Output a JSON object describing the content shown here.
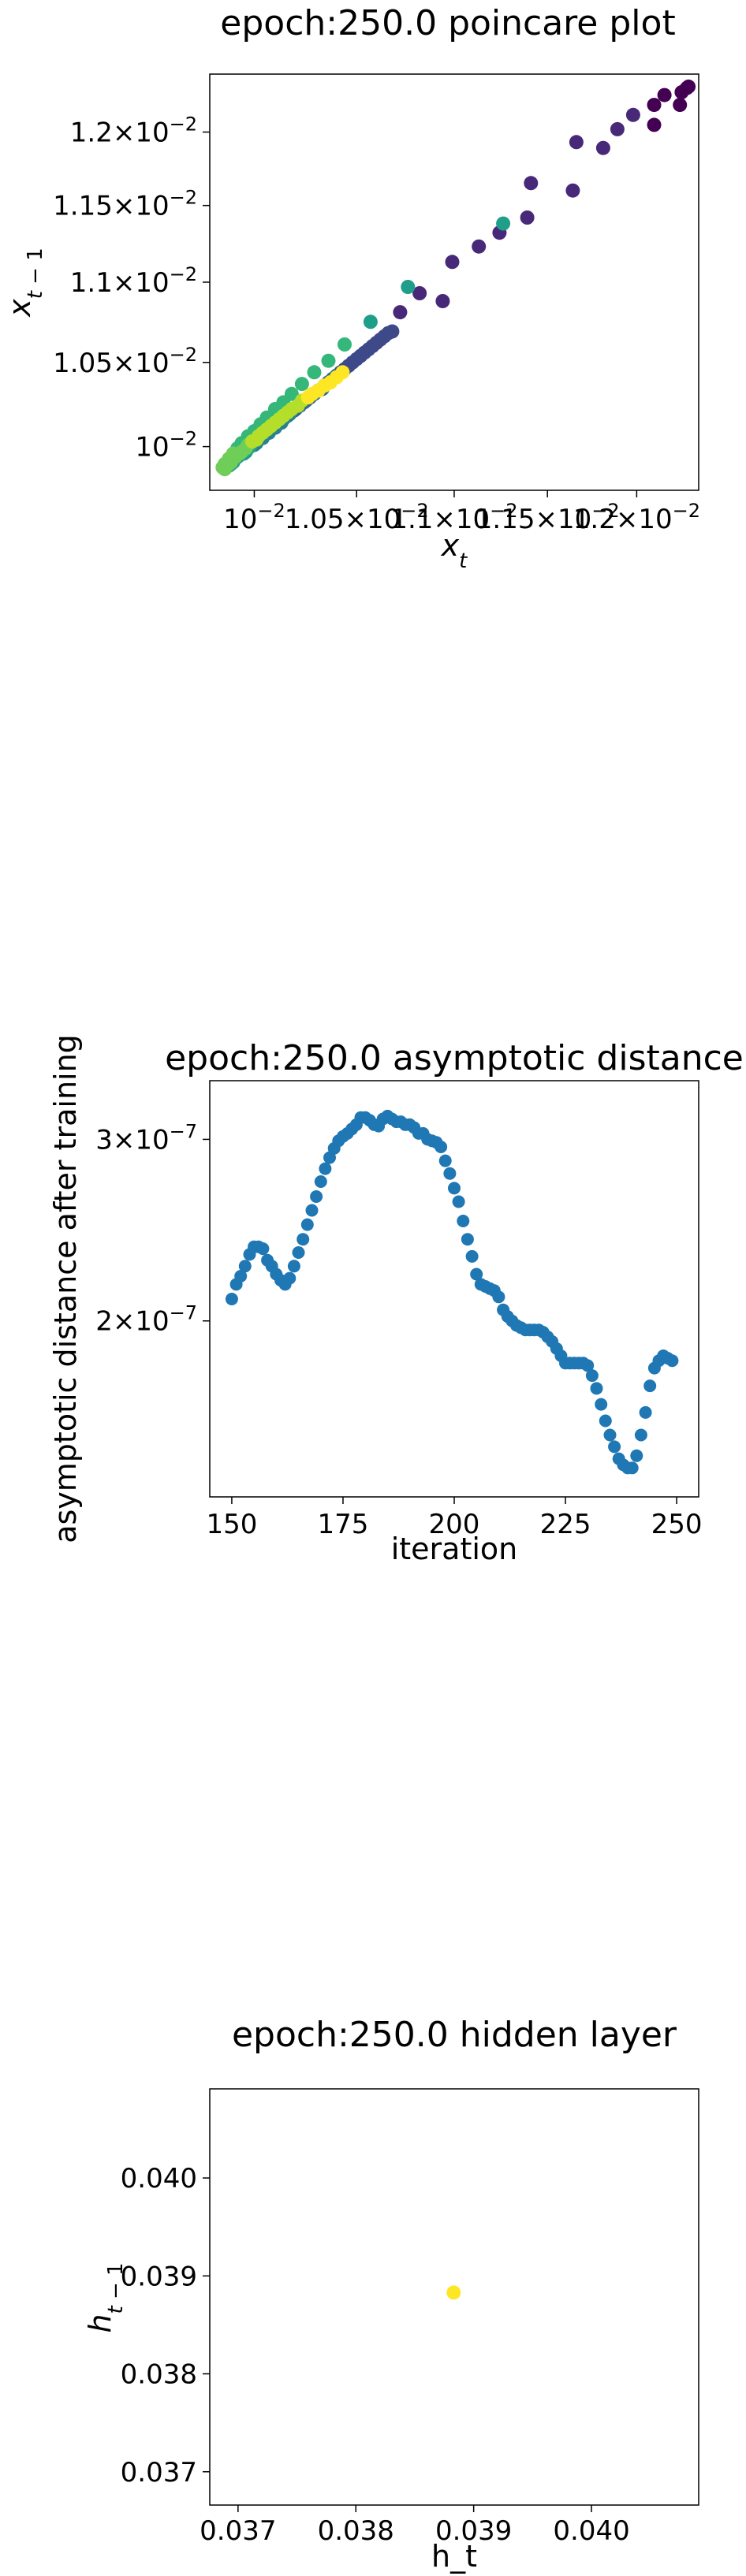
{
  "chart_data": [
    {
      "type": "scatter",
      "title": "epoch:250.0 poincare plot",
      "xlabel": "x_t",
      "ylabel": "x_{t-1}",
      "scale": "log",
      "xlim": [
        0.00979,
        0.01236
      ],
      "ylim": [
        0.00975,
        0.01241
      ],
      "x_ticks": [
        0.01,
        0.0105,
        0.011,
        0.0115,
        0.012
      ],
      "x_tick_labels": [
        "10^{-2}",
        "1.05×10^{-2}",
        "1.1×10^{-2}",
        "1.15×10^{-2}",
        "1.2×10^{-2}"
      ],
      "y_ticks": [
        0.01,
        0.0105,
        0.011,
        0.0115,
        0.012
      ],
      "y_tick_labels": [
        "10^{-2}",
        "1.05×10^{-2}",
        "1.1×10^{-2}",
        "1.15×10^{-2}",
        "1.2×10^{-2}"
      ],
      "colormap": "viridis",
      "color_note": "points colored by iteration order, dark purple (earliest) to yellow (latest)",
      "points": [
        [
          0.0123,
          0.01232
        ],
        [
          0.01229,
          0.01231
        ],
        [
          0.01226,
          0.01228
        ],
        [
          0.01225,
          0.01219
        ],
        [
          0.01216,
          0.01226
        ],
        [
          0.0121,
          0.01219
        ],
        [
          0.0121,
          0.01205
        ],
        [
          0.01198,
          0.01212
        ],
        [
          0.01189,
          0.01202
        ],
        [
          0.01181,
          0.01189
        ],
        [
          0.01166,
          0.01193
        ],
        [
          0.01164,
          0.0116
        ],
        [
          0.01141,
          0.01165
        ],
        [
          0.01139,
          0.01142
        ],
        [
          0.01124,
          0.01132
        ],
        [
          0.01113,
          0.01123
        ],
        [
          0.01099,
          0.01113
        ],
        [
          0.01094,
          0.01088
        ],
        [
          0.01082,
          0.01093
        ],
        [
          0.01072,
          0.01081
        ],
        [
          0.01068,
          0.01069
        ],
        [
          0.01066,
          0.01068
        ],
        [
          0.01064,
          0.01066
        ],
        [
          0.01062,
          0.01064
        ],
        [
          0.0106,
          0.01062
        ],
        [
          0.01058,
          0.0106
        ],
        [
          0.01056,
          0.01058
        ],
        [
          0.01054,
          0.01056
        ],
        [
          0.01052,
          0.01054
        ],
        [
          0.0105,
          0.01052
        ],
        [
          0.01048,
          0.0105
        ],
        [
          0.01046,
          0.01048
        ],
        [
          0.01044,
          0.01046
        ],
        [
          0.01042,
          0.01044
        ],
        [
          0.0104,
          0.01042
        ],
        [
          0.01038,
          0.0104
        ],
        [
          0.01036,
          0.01038
        ],
        [
          0.01034,
          0.01036
        ],
        [
          0.01033,
          0.01034
        ],
        [
          0.01031,
          0.01033
        ],
        [
          0.01029,
          0.01031
        ],
        [
          0.01027,
          0.01029
        ],
        [
          0.01025,
          0.01027
        ],
        [
          0.01024,
          0.01026
        ],
        [
          0.01022,
          0.01024
        ],
        [
          0.0102,
          0.01022
        ],
        [
          0.01019,
          0.01021
        ],
        [
          0.01017,
          0.01019
        ],
        [
          0.01016,
          0.01018
        ],
        [
          0.01014,
          0.01016
        ],
        [
          0.01013,
          0.01014
        ],
        [
          0.01011,
          0.01013
        ],
        [
          0.0101,
          0.01011
        ],
        [
          0.01008,
          0.0101
        ],
        [
          0.01007,
          0.01008
        ],
        [
          0.01005,
          0.01007
        ],
        [
          0.01004,
          0.01005
        ],
        [
          0.01002,
          0.01004
        ],
        [
          0.01001,
          0.01002
        ],
        [
          0.01,
          0.01001
        ],
        [
          0.00998,
          0.01
        ],
        [
          0.00997,
          0.00999
        ],
        [
          0.00996,
          0.00997
        ],
        [
          0.00995,
          0.00996
        ],
        [
          0.00993,
          0.00995
        ],
        [
          0.00992,
          0.00994
        ],
        [
          0.00991,
          0.00993
        ],
        [
          0.0099,
          0.00991
        ],
        [
          0.00989,
          0.0099
        ],
        [
          0.00988,
          0.00989
        ],
        [
          0.01126,
          0.01138
        ],
        [
          0.01076,
          0.01097
        ],
        [
          0.01057,
          0.01075
        ],
        [
          0.01044,
          0.01061
        ],
        [
          0.01036,
          0.01051
        ],
        [
          0.01029,
          0.01044
        ],
        [
          0.01023,
          0.01037
        ],
        [
          0.01018,
          0.01031
        ],
        [
          0.01014,
          0.01026
        ],
        [
          0.0101,
          0.01022
        ],
        [
          0.01006,
          0.01017
        ],
        [
          0.01003,
          0.01013
        ],
        [
          0.01,
          0.01009
        ],
        [
          0.00997,
          0.01006
        ],
        [
          0.00994,
          0.01002
        ],
        [
          0.00992,
          0.00999
        ],
        [
          0.0099,
          0.00996
        ],
        [
          0.00988,
          0.00993
        ],
        [
          0.00986,
          0.0099
        ],
        [
          0.00985,
          0.00988
        ],
        [
          0.00986,
          0.00987
        ],
        [
          0.00987,
          0.00989
        ],
        [
          0.00988,
          0.0099
        ],
        [
          0.00989,
          0.00991
        ],
        [
          0.0099,
          0.00993
        ],
        [
          0.00991,
          0.00994
        ],
        [
          0.00993,
          0.00996
        ],
        [
          0.00994,
          0.00997
        ],
        [
          0.00996,
          0.00999
        ],
        [
          0.00997,
          0.01001
        ],
        [
          0.00999,
          0.01003
        ],
        [
          0.01001,
          0.01004
        ],
        [
          0.01002,
          0.01006
        ],
        [
          0.01004,
          0.01008
        ],
        [
          0.01006,
          0.0101
        ],
        [
          0.01008,
          0.01012
        ],
        [
          0.0101,
          0.01014
        ],
        [
          0.01012,
          0.01016
        ],
        [
          0.01014,
          0.01018
        ],
        [
          0.01016,
          0.0102
        ],
        [
          0.01018,
          0.01022
        ],
        [
          0.01021,
          0.01024
        ],
        [
          0.01023,
          0.01027
        ],
        [
          0.01026,
          0.01029
        ],
        [
          0.01028,
          0.01031
        ],
        [
          0.01031,
          0.01033
        ],
        [
          0.01034,
          0.01036
        ],
        [
          0.01037,
          0.01038
        ],
        [
          0.0104,
          0.01041
        ],
        [
          0.01043,
          0.01044
        ]
      ]
    },
    {
      "type": "scatter",
      "title": "epoch:250.0 asymptotic distance",
      "xlabel": "iteration",
      "ylabel": "asymptotic distance after training",
      "yscale": "log",
      "xlim": [
        145.05,
        254.95
      ],
      "ylim": [
        1.35e-07,
        3.42e-07
      ],
      "x_ticks": [
        150,
        175,
        200,
        225,
        250
      ],
      "x_tick_labels": [
        "150",
        "175",
        "200",
        "225",
        "250"
      ],
      "y_ticks": [
        2e-07,
        3e-07
      ],
      "y_tick_labels": [
        "2×10^{-7}",
        "3×10^{-7}"
      ],
      "color": "#1f77b4",
      "x": [
        150,
        151,
        152,
        153,
        154,
        155,
        156,
        157,
        158,
        159,
        160,
        161,
        162,
        163,
        164,
        165,
        166,
        167,
        168,
        169,
        170,
        171,
        172,
        173,
        174,
        175,
        176,
        177,
        178,
        179,
        180,
        181,
        182,
        183,
        184,
        185,
        186,
        187,
        188,
        189,
        190,
        191,
        192,
        193,
        194,
        195,
        196,
        197,
        198,
        199,
        200,
        201,
        202,
        203,
        204,
        205,
        206,
        207,
        208,
        209,
        210,
        211,
        212,
        213,
        214,
        215,
        216,
        217,
        218,
        219,
        220,
        221,
        222,
        223,
        224,
        225,
        226,
        227,
        228,
        229,
        230,
        231,
        232,
        233,
        234,
        235,
        236,
        237,
        238,
        239,
        240,
        241,
        242,
        243,
        244,
        245,
        246,
        247,
        248,
        249
      ],
      "y": [
        2.1e-07,
        2.17e-07,
        2.21e-07,
        2.26e-07,
        2.32e-07,
        2.36e-07,
        2.36e-07,
        2.35e-07,
        2.29e-07,
        2.26e-07,
        2.22e-07,
        2.19e-07,
        2.17e-07,
        2.2e-07,
        2.26e-07,
        2.33e-07,
        2.4e-07,
        2.48e-07,
        2.56e-07,
        2.64e-07,
        2.73e-07,
        2.81e-07,
        2.88e-07,
        2.94e-07,
        2.99e-07,
        3.02e-07,
        3.04e-07,
        3.07e-07,
        3.1e-07,
        3.15e-07,
        3.15e-07,
        3.13e-07,
        3.1e-07,
        3.09e-07,
        3.14e-07,
        3.16e-07,
        3.14e-07,
        3.12e-07,
        3.12e-07,
        3.1e-07,
        3.1e-07,
        3.08e-07,
        3.04e-07,
        3.04e-07,
        3e-07,
        2.99e-07,
        2.98e-07,
        2.95e-07,
        2.86e-07,
        2.78e-07,
        2.69e-07,
        2.61e-07,
        2.5e-07,
        2.4e-07,
        2.31e-07,
        2.22e-07,
        2.17e-07,
        2.16e-07,
        2.15e-07,
        2.14e-07,
        2.11e-07,
        2.05e-07,
        2.02e-07,
        2e-07,
        1.98e-07,
        1.97e-07,
        1.96e-07,
        1.96e-07,
        1.96e-07,
        1.96e-07,
        1.95e-07,
        1.93e-07,
        1.91e-07,
        1.88e-07,
        1.85e-07,
        1.82e-07,
        1.82e-07,
        1.82e-07,
        1.82e-07,
        1.82e-07,
        1.81e-07,
        1.77e-07,
        1.72e-07,
        1.66e-07,
        1.6e-07,
        1.55e-07,
        1.51e-07,
        1.47e-07,
        1.45e-07,
        1.44e-07,
        1.44e-07,
        1.48e-07,
        1.55e-07,
        1.63e-07,
        1.73e-07,
        1.8e-07,
        1.83e-07,
        1.85e-07,
        1.84e-07,
        1.83e-07
      ]
    },
    {
      "type": "scatter",
      "title": "epoch:250.0 hidden layer",
      "xlabel": "h_t",
      "ylabel": "h_{t-1}",
      "xlim": [
        0.03676,
        0.04091
      ],
      "ylim": [
        0.03666,
        0.04091
      ],
      "x_ticks": [
        0.037,
        0.038,
        0.039,
        0.04
      ],
      "x_tick_labels": [
        "0.037",
        "0.038",
        "0.039",
        "0.040"
      ],
      "y_ticks": [
        0.037,
        0.038,
        0.039,
        0.04
      ],
      "y_tick_labels": [
        "0.037",
        "0.038",
        "0.039",
        "0.040"
      ],
      "color": "#fde725",
      "points": [
        [
          0.03883,
          0.03883
        ]
      ]
    }
  ]
}
